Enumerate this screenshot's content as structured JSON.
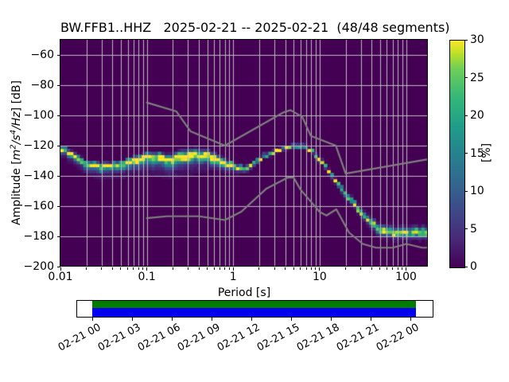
{
  "title": "BW.FFB1..HHZ   2025-02-21 -- 2025-02-21  (48/48 segments)",
  "axes": {
    "xlabel": "Period [s]",
    "ylabel_parts": {
      "pre": "Amplitude [",
      "m": "m",
      "exp2": "2",
      "per_s": "/s",
      "exp4": "4",
      "per_hz": "/Hz",
      "post": "] [dB]"
    },
    "x_tick_labels": [
      {
        "value": 0.01,
        "label": "0.01"
      },
      {
        "value": 0.1,
        "label": "0.1"
      },
      {
        "value": 1,
        "label": "1"
      },
      {
        "value": 10,
        "label": "10"
      },
      {
        "value": 100,
        "label": "100"
      }
    ],
    "y_tick_labels": [
      {
        "value": -60,
        "label": "−60"
      },
      {
        "value": -80,
        "label": "−80"
      },
      {
        "value": -100,
        "label": "−100"
      },
      {
        "value": -120,
        "label": "−120"
      },
      {
        "value": -140,
        "label": "−140"
      },
      {
        "value": -160,
        "label": "−160"
      },
      {
        "value": -180,
        "label": "−180"
      },
      {
        "value": -200,
        "label": "−200"
      }
    ]
  },
  "colorbar": {
    "label": "[%]",
    "ticks": [
      {
        "value": 0,
        "label": "0"
      },
      {
        "value": 5,
        "label": "5"
      },
      {
        "value": 10,
        "label": "10"
      },
      {
        "value": 15,
        "label": "15"
      },
      {
        "value": 20,
        "label": "20"
      },
      {
        "value": 25,
        "label": "25"
      },
      {
        "value": 30,
        "label": "30"
      }
    ]
  },
  "chart_data": {
    "type": "heatmap",
    "subtype": "obspy-ppsd-probability-histogram",
    "title": "BW.FFB1..HHZ   2025-02-21 -- 2025-02-21  (48/48 segments)",
    "xlabel": "Period [s]",
    "ylabel": "Amplitude [m^2/s^4/Hz] [dB]",
    "xscale": "log",
    "xlim": [
      0.01,
      179
    ],
    "ylim": [
      -200,
      -50
    ],
    "grid": true,
    "colormap": "viridis",
    "background_value_color": "#440154",
    "grid_color": "#c4c4c4",
    "max_percent": 30,
    "period_bin_octaves": 0.125,
    "db_bin_width": 2,
    "ppsd_mode_curve": [
      [
        0.01,
        -121.0
      ],
      [
        0.012,
        -123.5
      ],
      [
        0.015,
        -127.0
      ],
      [
        0.019,
        -131.0
      ],
      [
        0.025,
        -133.0
      ],
      [
        0.032,
        -133.5
      ],
      [
        0.042,
        -132.8
      ],
      [
        0.055,
        -131.3
      ],
      [
        0.07,
        -129.5
      ],
      [
        0.088,
        -127.3
      ],
      [
        0.107,
        -126.0
      ],
      [
        0.13,
        -127.0
      ],
      [
        0.16,
        -128.0
      ],
      [
        0.19,
        -128.5
      ],
      [
        0.23,
        -127.3
      ],
      [
        0.28,
        -126.6
      ],
      [
        0.35,
        -126.3
      ],
      [
        0.42,
        -125.8
      ],
      [
        0.5,
        -126.4
      ],
      [
        0.6,
        -127.6
      ],
      [
        0.75,
        -129.6
      ],
      [
        0.9,
        -131.8
      ],
      [
        1.1,
        -134.3
      ],
      [
        1.35,
        -135.0
      ],
      [
        1.6,
        -132.8
      ],
      [
        1.9,
        -129.3
      ],
      [
        2.3,
        -126.3
      ],
      [
        2.8,
        -124.2
      ],
      [
        3.5,
        -122.2
      ],
      [
        4.3,
        -120.8
      ],
      [
        5.2,
        -119.8
      ],
      [
        6.2,
        -119.6
      ],
      [
        7.0,
        -120.8
      ],
      [
        8.0,
        -123.3
      ],
      [
        9.0,
        -126.0
      ],
      [
        10.0,
        -129.0
      ],
      [
        11.5,
        -133.0
      ],
      [
        13.0,
        -137.0
      ],
      [
        15.0,
        -142.0
      ],
      [
        17.5,
        -147.5
      ],
      [
        20.0,
        -152.0
      ],
      [
        23.0,
        -156.0
      ],
      [
        26.0,
        -159.5
      ],
      [
        30.0,
        -164.0
      ],
      [
        34.0,
        -167.8
      ],
      [
        40.0,
        -171.8
      ],
      [
        46.0,
        -174.3
      ],
      [
        55.0,
        -176.3
      ],
      [
        70.0,
        -177.2
      ],
      [
        90.0,
        -177.5
      ],
      [
        120.0,
        -177.6
      ],
      [
        179.0,
        -177.2
      ]
    ],
    "spread_above_db": [
      [
        0.01,
        2.5
      ],
      [
        0.05,
        2.5
      ],
      [
        0.1,
        3.0
      ],
      [
        0.2,
        4.0
      ],
      [
        0.3,
        5.0
      ],
      [
        0.5,
        4.5
      ],
      [
        0.7,
        3.5
      ],
      [
        1.0,
        2.5
      ],
      [
        1.5,
        2.0
      ],
      [
        3.0,
        1.8
      ],
      [
        8.0,
        1.8
      ],
      [
        15.0,
        2.2
      ],
      [
        25.0,
        3.0
      ],
      [
        40.0,
        4.5
      ],
      [
        60.0,
        5.0
      ],
      [
        179.0,
        5.0
      ]
    ],
    "spread_below_db": [
      [
        0.01,
        6.0
      ],
      [
        0.015,
        7.0
      ],
      [
        0.02,
        8.0
      ],
      [
        0.03,
        9.0
      ],
      [
        0.05,
        10.0
      ],
      [
        0.08,
        12.0
      ],
      [
        0.12,
        13.0
      ],
      [
        0.2,
        14.0
      ],
      [
        0.35,
        13.0
      ],
      [
        0.5,
        12.0
      ],
      [
        0.7,
        10.0
      ],
      [
        0.9,
        7.0
      ],
      [
        1.2,
        4.5
      ],
      [
        1.8,
        3.0
      ],
      [
        3.0,
        2.2
      ],
      [
        8.0,
        2.2
      ],
      [
        12.0,
        3.0
      ],
      [
        20.0,
        4.0
      ],
      [
        30.0,
        5.0
      ],
      [
        45.0,
        6.0
      ],
      [
        70.0,
        6.5
      ],
      [
        179.0,
        6.5
      ]
    ],
    "noise_models": {
      "color": "#7f7f7f",
      "nhnm": [
        [
          0.1,
          -91.5
        ],
        [
          0.22,
          -97.4
        ],
        [
          0.32,
          -110.5
        ],
        [
          0.8,
          -120.0
        ],
        [
          3.8,
          -98.0
        ],
        [
          4.6,
          -96.5
        ],
        [
          6.3,
          -101.0
        ],
        [
          7.9,
          -113.5
        ],
        [
          15.4,
          -120.0
        ],
        [
          20.0,
          -138.5
        ],
        [
          179.0,
          -129.0
        ]
      ],
      "nlnm": [
        [
          0.1,
          -168.0
        ],
        [
          0.17,
          -166.7
        ],
        [
          0.4,
          -166.7
        ],
        [
          0.8,
          -169.2
        ],
        [
          1.24,
          -163.7
        ],
        [
          2.4,
          -148.6
        ],
        [
          4.3,
          -141.1
        ],
        [
          5.0,
          -141.1
        ],
        [
          6.0,
          -149.0
        ],
        [
          10.0,
          -163.8
        ],
        [
          12.0,
          -166.2
        ],
        [
          15.6,
          -162.1
        ],
        [
          21.9,
          -177.5
        ],
        [
          31.6,
          -185.0
        ],
        [
          45.0,
          -187.5
        ],
        [
          70.0,
          -187.5
        ],
        [
          101.0,
          -185.0
        ],
        [
          154.0,
          -187.5
        ],
        [
          179.0,
          -187.5
        ]
      ]
    }
  },
  "timeline": {
    "coverage_top_color": "#007c00",
    "coverage_bottom_color": "#0000ee",
    "tick_labels": [
      "02-21 00",
      "02-21 03",
      "02-21 06",
      "02-21 09",
      "02-21 12",
      "02-21 15",
      "02-21 18",
      "02-21 21",
      "02-22 00"
    ]
  }
}
